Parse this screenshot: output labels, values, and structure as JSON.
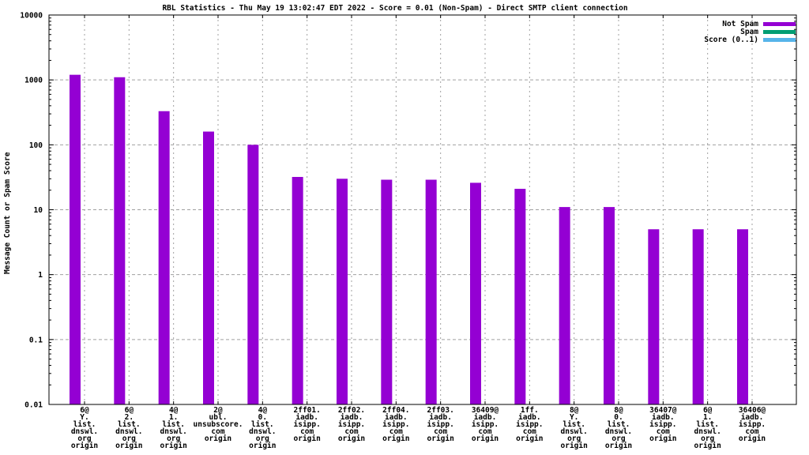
{
  "chart_data": {
    "type": "bar",
    "title": "RBL Statistics - Thu May 19 13:02:47 EDT 2022 - Score = 0.01 (Non-Spam) - Direct SMTP client connection",
    "ylabel": "Message Count or Spam Score",
    "xlabel": "",
    "yscale": "log",
    "ylim": [
      0.01,
      10000
    ],
    "yticks": [
      10000,
      1000,
      100,
      10,
      1,
      0.1,
      0.01
    ],
    "grid": true,
    "legend_position": "top-right-inside",
    "legend": [
      {
        "label": "Not Spam",
        "color": "#9400d3"
      },
      {
        "label": "Spam",
        "color": "#009e73"
      },
      {
        "label": "Score (0..1)",
        "color": "#56b4e9"
      }
    ],
    "categories": [
      [
        "6@",
        "Y.",
        "list.",
        "dnswl.",
        "org",
        "origin"
      ],
      [
        "6@",
        "2.",
        "list.",
        "dnswl.",
        "org",
        "origin"
      ],
      [
        "4@",
        "1.",
        "list.",
        "dnswl.",
        "org",
        "origin"
      ],
      [
        "2@",
        "ubl.",
        "unsubscore.",
        "com",
        "origin"
      ],
      [
        "4@",
        "0.",
        "list.",
        "dnswl.",
        "org",
        "origin"
      ],
      [
        "2ff01.",
        "iadb.",
        "isipp.",
        "com",
        "origin"
      ],
      [
        "2ff02.",
        "iadb.",
        "isipp.",
        "com",
        "origin"
      ],
      [
        "2ff04.",
        "iadb.",
        "isipp.",
        "com",
        "origin"
      ],
      [
        "2ff03.",
        "iadb.",
        "isipp.",
        "com",
        "origin"
      ],
      [
        "36409@",
        "iadb.",
        "isipp.",
        "com",
        "origin"
      ],
      [
        "1ff.",
        "iadb.",
        "isipp.",
        "com",
        "origin"
      ],
      [
        "8@",
        "Y.",
        "list.",
        "dnswl.",
        "org",
        "origin"
      ],
      [
        "8@",
        "0.",
        "list.",
        "dnswl.",
        "org",
        "origin"
      ],
      [
        "36407@",
        "iadb.",
        "isipp.",
        "com",
        "origin"
      ],
      [
        "6@",
        "1.",
        "list.",
        "dnswl.",
        "org",
        "origin"
      ],
      [
        "36406@",
        "iadb.",
        "isipp.",
        "com",
        "origin"
      ]
    ],
    "series": [
      {
        "name": "Not Spam",
        "color": "#9400d3",
        "values": [
          1200,
          1100,
          330,
          160,
          100,
          32,
          30,
          29,
          29,
          26,
          21,
          11,
          11,
          5,
          5,
          5
        ]
      }
    ],
    "colors": {
      "bar": "#9400d3",
      "grid": "#a0a0a0",
      "axis": "#000000",
      "text": "#000000",
      "background": "#ffffff"
    }
  }
}
